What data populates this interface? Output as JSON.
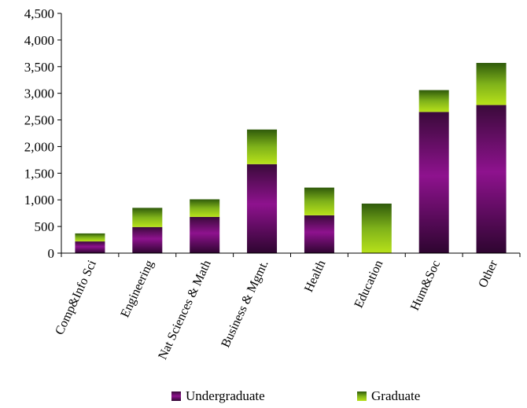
{
  "chart_data": {
    "type": "bar",
    "stacked": true,
    "categories": [
      "Comp&Info Sci",
      "Engineering",
      "Nat Sciences & Math",
      "Business & Mgmt.",
      "Health",
      "Education",
      "Hum&Soc",
      "Other"
    ],
    "series": [
      {
        "name": "Undergraduate",
        "values": [
          220,
          490,
          680,
          1670,
          710,
          0,
          2650,
          2780
        ],
        "color": "#8b0f8b"
      },
      {
        "name": "Graduate",
        "values": [
          150,
          360,
          330,
          650,
          520,
          930,
          410,
          790
        ],
        "color": "#8ec21a"
      }
    ],
    "ylim": [
      0,
      4500
    ],
    "yticks": [
      "0",
      "500",
      "1,000",
      "1,500",
      "2,000",
      "2,500",
      "3,000",
      "3,500",
      "4,000",
      "4,500"
    ],
    "grid": false,
    "legend": "bottom"
  }
}
